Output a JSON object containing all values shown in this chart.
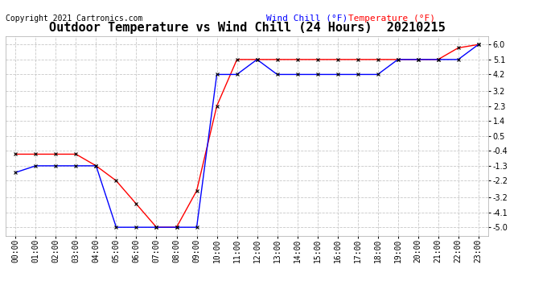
{
  "title": "Outdoor Temperature vs Wind Chill (24 Hours)  20210215",
  "copyright": "Copyright 2021 Cartronics.com",
  "legend_wind_chill": "Wind Chill (°F)",
  "legend_temp": "Temperature (°F)",
  "x_labels": [
    "00:00",
    "01:00",
    "02:00",
    "03:00",
    "04:00",
    "05:00",
    "06:00",
    "07:00",
    "08:00",
    "09:00",
    "10:00",
    "11:00",
    "12:00",
    "13:00",
    "14:00",
    "15:00",
    "16:00",
    "17:00",
    "18:00",
    "19:00",
    "20:00",
    "21:00",
    "22:00",
    "23:00"
  ],
  "y_ticks": [
    -5.0,
    -4.1,
    -3.2,
    -2.2,
    -1.3,
    -0.4,
    0.5,
    1.4,
    2.3,
    3.2,
    4.2,
    5.1,
    6.0
  ],
  "ylim": [
    -5.5,
    6.5
  ],
  "temperature": [
    -0.6,
    -0.6,
    -0.6,
    -0.6,
    -1.3,
    -2.2,
    -3.6,
    -5.0,
    -5.0,
    -2.8,
    2.3,
    5.1,
    5.1,
    5.1,
    5.1,
    5.1,
    5.1,
    5.1,
    5.1,
    5.1,
    5.1,
    5.1,
    5.8,
    6.0
  ],
  "wind_chill": [
    -1.7,
    -1.3,
    -1.3,
    -1.3,
    -1.3,
    -5.0,
    -5.0,
    -5.0,
    -5.0,
    -5.0,
    4.2,
    4.2,
    5.1,
    4.2,
    4.2,
    4.2,
    4.2,
    4.2,
    4.2,
    5.1,
    5.1,
    5.1,
    5.1,
    6.0
  ],
  "temp_color": "#ff0000",
  "wind_chill_color": "#0000ff",
  "marker_color": "#000000",
  "grid_color": "#c8c8c8",
  "background_color": "#ffffff",
  "title_fontsize": 11,
  "copyright_fontsize": 7,
  "legend_fontsize": 8,
  "tick_fontsize": 7,
  "line_width": 1.0
}
